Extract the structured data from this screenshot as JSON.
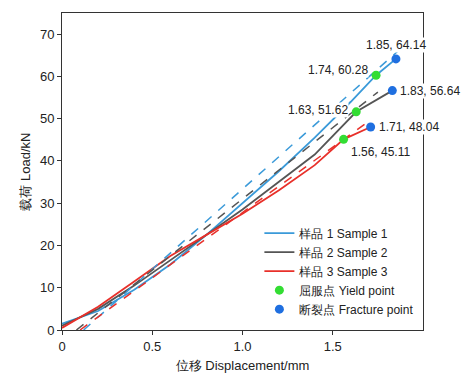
{
  "chart_data": {
    "type": "line",
    "xlabel": "位移 Displacement/mm",
    "ylabel": "载荷 Load/kN",
    "xlim": [
      0,
      2
    ],
    "xticks": [
      0,
      0.5,
      {
        "value": 1,
        "label": "1.0"
      },
      1.5
    ],
    "ylim": [
      0,
      75
    ],
    "yticks": [
      0,
      10,
      20,
      30,
      40,
      50,
      60,
      70
    ],
    "grid": false,
    "legend": "lower right",
    "series": [
      {
        "name": "样品 1 Sample 1",
        "type": "line",
        "line_style": "solid",
        "color": "#3a9ad9",
        "x": [
          0,
          0.2,
          0.4,
          0.6,
          0.8,
          1.0,
          1.2,
          1.4,
          1.6,
          1.74,
          1.85
        ],
        "values": [
          1.5,
          4.5,
          9.5,
          15.5,
          22.5,
          30,
          37.5,
          45.5,
          54,
          60.28,
          64.14
        ]
      },
      {
        "name": "样品 2 Sample 2",
        "type": "line",
        "line_style": "solid",
        "color": "#555555",
        "x": [
          0,
          0.2,
          0.4,
          0.6,
          0.8,
          1.0,
          1.2,
          1.4,
          1.63,
          1.83
        ],
        "values": [
          1,
          5,
          10.5,
          16.5,
          22.5,
          28.5,
          35,
          41.5,
          51.62,
          56.64
        ]
      },
      {
        "name": "样品 3 Sample 3",
        "type": "line",
        "line_style": "solid",
        "color": "#e8302a",
        "x": [
          0,
          0.2,
          0.4,
          0.6,
          0.8,
          1.0,
          1.2,
          1.4,
          1.56,
          1.71
        ],
        "values": [
          0.5,
          5.5,
          11.5,
          17.5,
          22.5,
          27.5,
          33,
          39,
          45.11,
          48.04
        ]
      },
      {
        "type": "line",
        "line_style": "dash",
        "color": "#3a9ad9",
        "x": [
          0.12,
          1.88
        ],
        "values": [
          0,
          66.7
        ]
      },
      {
        "type": "line",
        "line_style": "dash",
        "color": "#555555",
        "x": [
          0.08,
          1.75
        ],
        "values": [
          0,
          56.3
        ]
      },
      {
        "type": "line",
        "line_style": "dash",
        "color": "#e8302a",
        "x": [
          0.1,
          1.7
        ],
        "values": [
          0,
          49.4
        ]
      },
      {
        "name": "屈服点 Yield point",
        "type": "scatter",
        "marker": "circle",
        "color": "#33dd33",
        "x": [
          1.74,
          1.63,
          1.56
        ],
        "values": [
          60.28,
          51.62,
          45.11
        ],
        "value_labels": [
          "1.74, 60.28",
          "1.63, 51.62",
          "1.56, 45.11"
        ]
      },
      {
        "name": "断裂点 Fracture point",
        "type": "scatter",
        "marker": "circle",
        "color": "#1f6fe0",
        "x": [
          1.85,
          1.83,
          1.71
        ],
        "values": [
          64.14,
          56.64,
          48.04
        ],
        "value_labels": [
          "1.85, 64.14",
          "1.83, 56.64",
          "1.71, 48.04"
        ]
      }
    ]
  }
}
